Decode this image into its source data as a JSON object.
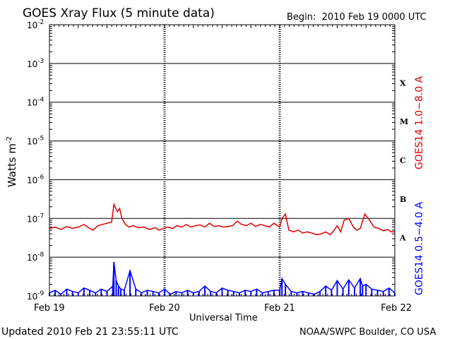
{
  "chart_data": {
    "type": "line",
    "title": "GOES Xray Flux (5 minute data)",
    "begin_label": "Begin:  2010 Feb 19 0000 UTC",
    "ylabel": "Watts m",
    "ylabel_sup": "-2",
    "xlabel": "Universal Time",
    "y_scale": "log",
    "ylim": [
      1e-09,
      0.01
    ],
    "y_ticks": [
      {
        "base": "10",
        "exp": "-2"
      },
      {
        "base": "10",
        "exp": "-3"
      },
      {
        "base": "10",
        "exp": "-4"
      },
      {
        "base": "10",
        "exp": "-5"
      },
      {
        "base": "10",
        "exp": "-6"
      },
      {
        "base": "10",
        "exp": "-7"
      },
      {
        "base": "10",
        "exp": "-8"
      },
      {
        "base": "10",
        "exp": "-9"
      }
    ],
    "x_ticks": [
      "Feb 19",
      "Feb 20",
      "Feb 21",
      "Feb 22"
    ],
    "flare_classes": [
      "X",
      "M",
      "C",
      "B",
      "A"
    ],
    "series": [
      {
        "name": "GOES14 1.0−8.0 A",
        "color": "#e00000",
        "days": [
          0.0,
          0.05,
          0.1,
          0.15,
          0.2,
          0.25,
          0.3,
          0.35,
          0.38,
          0.42,
          0.46,
          0.5,
          0.54,
          0.56,
          0.57,
          0.59,
          0.61,
          0.63,
          0.66,
          0.69,
          0.73,
          0.77,
          0.82,
          0.87,
          0.92,
          0.95,
          0.99,
          1.03,
          1.07,
          1.11,
          1.15,
          1.19,
          1.23,
          1.27,
          1.31,
          1.35,
          1.39,
          1.43,
          1.47,
          1.51,
          1.55,
          1.59,
          1.63,
          1.67,
          1.71,
          1.75,
          1.79,
          1.83,
          1.87,
          1.91,
          1.95,
          1.98,
          2.0,
          2.02,
          2.05,
          2.08,
          2.12,
          2.16,
          2.2,
          2.24,
          2.28,
          2.32,
          2.36,
          2.4,
          2.44,
          2.47,
          2.5,
          2.53,
          2.56,
          2.6,
          2.64,
          2.67,
          2.7,
          2.74,
          2.78,
          2.82,
          2.86,
          2.9,
          2.94,
          2.97,
          3.0
        ],
        "values": [
          5.5e-08,
          6e-08,
          5.2e-08,
          6.2e-08,
          5.5e-08,
          6e-08,
          7e-08,
          5.5e-08,
          5e-08,
          6.5e-08,
          7e-08,
          7.5e-08,
          8e-08,
          2.3e-07,
          2e-07,
          1.5e-07,
          1.8e-07,
          1e-07,
          7e-08,
          6e-08,
          6.5e-08,
          5.8e-08,
          6e-08,
          5.2e-08,
          5.8e-08,
          5e-08,
          5.5e-08,
          6e-08,
          5.5e-08,
          6.5e-08,
          6e-08,
          7e-08,
          6e-08,
          6.5e-08,
          6.8e-08,
          6e-08,
          7.5e-08,
          6.2e-08,
          6.5e-08,
          6e-08,
          6.2e-08,
          6.5e-08,
          8.5e-08,
          7e-08,
          6.5e-08,
          7.5e-08,
          6.2e-08,
          7e-08,
          6.5e-08,
          6e-08,
          7.5e-08,
          6.5e-08,
          6e-08,
          1e-07,
          1.3e-07,
          5e-08,
          4.5e-08,
          5e-08,
          4.2e-08,
          4.5e-08,
          4.2e-08,
          3.8e-08,
          4e-08,
          4.5e-08,
          3.8e-08,
          4.8e-08,
          6.5e-08,
          4.5e-08,
          9e-08,
          1e-07,
          6e-08,
          5e-08,
          5.5e-08,
          1.3e-07,
          9e-08,
          6e-08,
          5.5e-08,
          4.8e-08,
          5.2e-08,
          4.5e-08,
          4.5e-08
        ]
      },
      {
        "name": "GOES14 0.5−4.0 A",
        "color": "#0000ff",
        "days": [
          0.0,
          0.05,
          0.1,
          0.15,
          0.2,
          0.25,
          0.3,
          0.35,
          0.4,
          0.45,
          0.5,
          0.55,
          0.56,
          0.58,
          0.6,
          0.62,
          0.65,
          0.7,
          0.75,
          0.8,
          0.85,
          0.9,
          0.95,
          1.0,
          1.05,
          1.1,
          1.15,
          1.2,
          1.25,
          1.3,
          1.35,
          1.4,
          1.45,
          1.5,
          1.55,
          1.6,
          1.65,
          1.7,
          1.75,
          1.8,
          1.85,
          1.9,
          1.95,
          2.0,
          2.02,
          2.05,
          2.1,
          2.15,
          2.2,
          2.25,
          2.3,
          2.35,
          2.4,
          2.45,
          2.5,
          2.55,
          2.6,
          2.65,
          2.7,
          2.72,
          2.75,
          2.8,
          2.85,
          2.9,
          2.95,
          3.0
        ],
        "values": [
          1.2e-09,
          1.4e-09,
          1.1e-09,
          1.5e-09,
          1.3e-09,
          1.2e-09,
          1.6e-09,
          1.4e-09,
          1.2e-09,
          1.5e-09,
          1.3e-09,
          1.8e-09,
          7.5e-09,
          2.5e-09,
          1.8e-09,
          1.5e-09,
          1.4e-09,
          4.5e-09,
          1.5e-09,
          1.2e-09,
          1.4e-09,
          1.3e-09,
          1.2e-09,
          1.5e-09,
          1.1e-09,
          1.3e-09,
          1.2e-09,
          1.4e-09,
          1.2e-09,
          1.3e-09,
          1.8e-09,
          1.3e-09,
          1.2e-09,
          1.6e-09,
          1.4e-09,
          1.3e-09,
          1.2e-09,
          1.4e-09,
          1.3e-09,
          1.5e-09,
          1.2e-09,
          1.3e-09,
          1.4e-09,
          1.4e-09,
          2.8e-09,
          2e-09,
          1.3e-09,
          1.2e-09,
          1.3e-09,
          1.2e-09,
          1.1e-09,
          1.3e-09,
          1.8e-09,
          1.4e-09,
          2.5e-09,
          1.5e-09,
          2.6e-09,
          1.6e-09,
          2.8e-09,
          1.8e-09,
          2e-09,
          1.5e-09,
          1.4e-09,
          1.3e-09,
          1.6e-09,
          1.2e-09
        ]
      }
    ],
    "grid": "horizontal at decades, dashed vertical at day boundaries",
    "legend": "right side, vertical"
  },
  "footer": {
    "updated": "Updated 2010 Feb 21 23:55:11 UTC",
    "credit": "NOAA/SWPC Boulder, CO USA"
  }
}
